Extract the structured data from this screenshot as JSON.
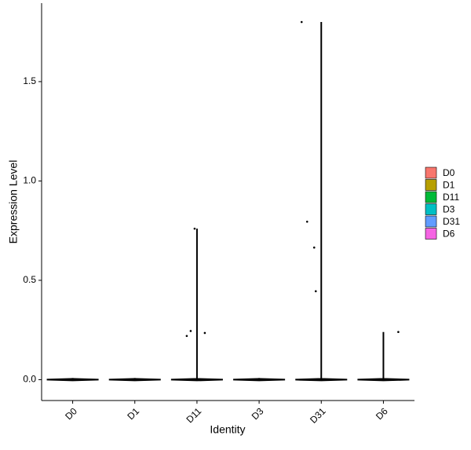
{
  "chart_data": {
    "type": "violin",
    "x_label": "Identity",
    "y_label": "Expression Level",
    "categories": [
      "D0",
      "D1",
      "D11",
      "D3",
      "D31",
      "D6"
    ],
    "ylim": [
      -0.105,
      1.895
    ],
    "yticks": [
      {
        "value": 0,
        "label": "0.0"
      },
      0.5,
      {
        "value": 1,
        "label": "1.0"
      },
      1.5
    ],
    "legend": "right",
    "series": [
      {
        "name": "D0",
        "color": "#F8766D",
        "max": 0,
        "values": []
      },
      {
        "name": "D1",
        "color": "#B79F00",
        "max": 0,
        "values": []
      },
      {
        "name": "D11",
        "color": "#00BA38",
        "max": 0.76,
        "values": [
          0.76,
          0.245,
          0.22,
          0.235
        ]
      },
      {
        "name": "D3",
        "color": "#00BFC4",
        "max": 0,
        "values": []
      },
      {
        "name": "D31",
        "color": "#619CFF",
        "max": 1.8,
        "values": [
          1.8,
          0.795,
          0.665,
          0.445
        ]
      },
      {
        "name": "D6",
        "color": "#F564E3",
        "max": 0.24,
        "values": [
          0.24
        ]
      }
    ]
  }
}
